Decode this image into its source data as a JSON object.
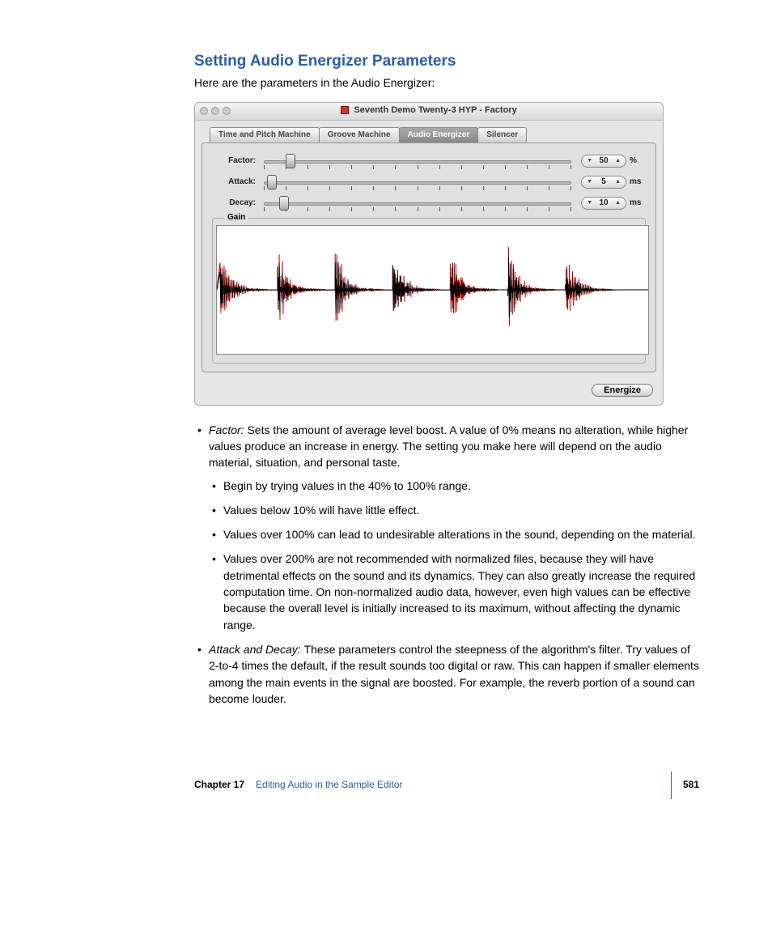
{
  "heading": "Setting Audio Energizer Parameters",
  "intro": "Here are the parameters in the Audio Energizer:",
  "window": {
    "title": "Seventh Demo Twenty-3 HYP - Factory",
    "tabs": [
      "Time and Pitch Machine",
      "Groove Machine",
      "Audio Energizer",
      "Silencer"
    ],
    "active_tab_index": 2,
    "params": [
      {
        "label": "Factor:",
        "value": "50",
        "unit": "%",
        "thumb_pct": 8
      },
      {
        "label": "Attack:",
        "value": "5",
        "unit": "ms",
        "thumb_pct": 2
      },
      {
        "label": "Decay:",
        "value": "10",
        "unit": "ms",
        "thumb_pct": 6
      }
    ],
    "tick_count": 15,
    "gain_label": "Gain",
    "button": "Energize",
    "waveform": {
      "back_color": "#b80000",
      "front_color": "#000000",
      "bursts": 7,
      "burst_len": 60,
      "gap": 12,
      "max_amp": 70,
      "decay": 0.92
    }
  },
  "bullets": [
    {
      "term": "Factor:",
      "text": "Sets the amount of average level boost. A value of 0% means no alteration, while higher values produce an increase in energy. The setting you make here will depend on the audio material, situation, and personal taste.",
      "sub": [
        "Begin by trying values in the 40% to 100% range.",
        "Values below 10% will have little effect.",
        "Values over 100% can lead to undesirable alterations in the sound, depending on the material.",
        "Values over 200% are not recommended with normalized files, because they will have detrimental effects on the sound and its dynamics. They can also greatly increase the required computation time. On non-normalized audio data, however, even high values can be effective because the overall level is initially increased to its maximum, without affecting the dynamic range."
      ]
    },
    {
      "term": "Attack and Decay:",
      "text": "These parameters control the steepness of the algorithm's filter. Try values of 2-to-4 times the default, if the result sounds too digital or raw. This can happen if smaller elements among the main events in the signal are boosted. For example, the reverb portion of a sound can become louder."
    }
  ],
  "footer": {
    "chapter": "Chapter 17",
    "name": "Editing Audio in the Sample Editor",
    "page": "581"
  }
}
